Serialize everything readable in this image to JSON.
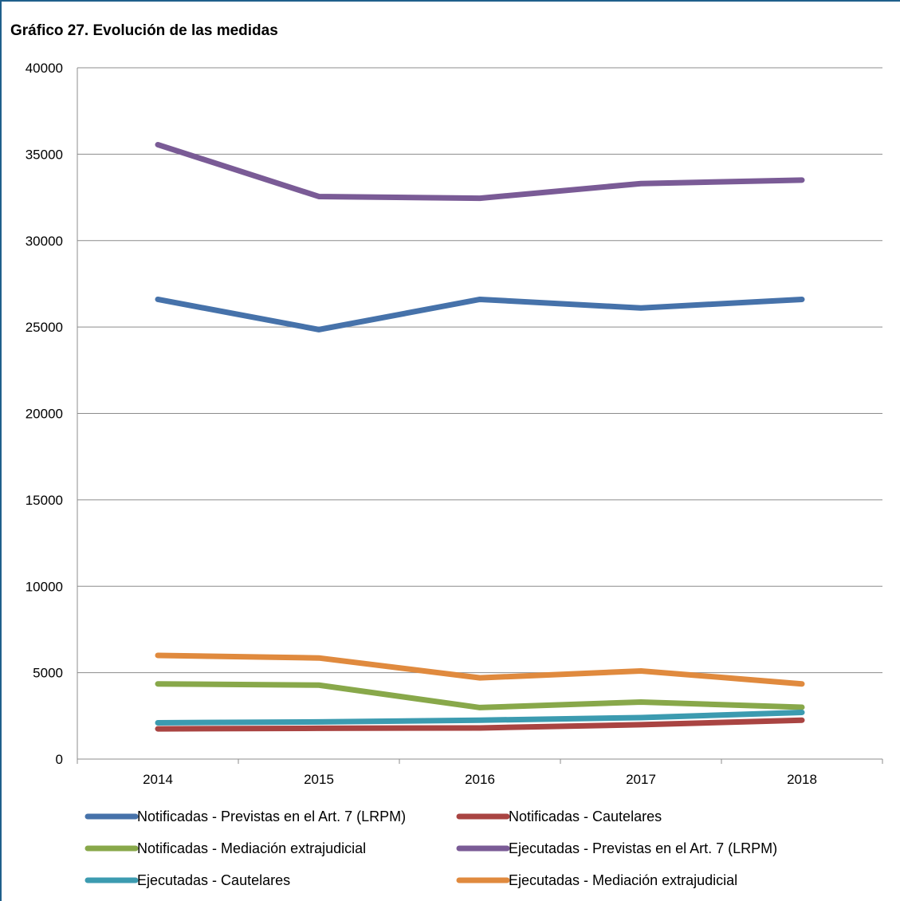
{
  "chart_data": {
    "type": "line",
    "title": "Gráfico 27. Evolución de las medidas",
    "xlabel": "",
    "ylabel": "",
    "categories": [
      "2014",
      "2015",
      "2016",
      "2017",
      "2018"
    ],
    "ylim": [
      0,
      40000
    ],
    "yticks": [
      0,
      5000,
      10000,
      15000,
      20000,
      25000,
      30000,
      35000,
      40000
    ],
    "grid": true,
    "legend_position": "bottom",
    "series": [
      {
        "name": "Notificadas - Previstas en el Art. 7 (LRPM)",
        "color": "#4672aa",
        "values": [
          26600,
          24850,
          26600,
          26100,
          26600
        ]
      },
      {
        "name": "Notificadas - Cautelares",
        "color": "#a94442",
        "values": [
          1750,
          1780,
          1800,
          1990,
          2250
        ]
      },
      {
        "name": "Notificadas - Mediación extrajudicial",
        "color": "#88a84a",
        "values": [
          4350,
          4280,
          2980,
          3300,
          3000
        ]
      },
      {
        "name": "Ejecutadas - Previstas en el Art. 7 (LRPM)",
        "color": "#7a5b96",
        "values": [
          35550,
          32550,
          32450,
          33300,
          33500
        ]
      },
      {
        "name": "Ejecutadas - Cautelares",
        "color": "#3c9bb0",
        "values": [
          2100,
          2150,
          2250,
          2400,
          2700
        ]
      },
      {
        "name": "Ejecutadas - Mediación extrajudicial",
        "color": "#e08a3e",
        "values": [
          6000,
          5850,
          4700,
          5100,
          4350
        ]
      }
    ]
  }
}
